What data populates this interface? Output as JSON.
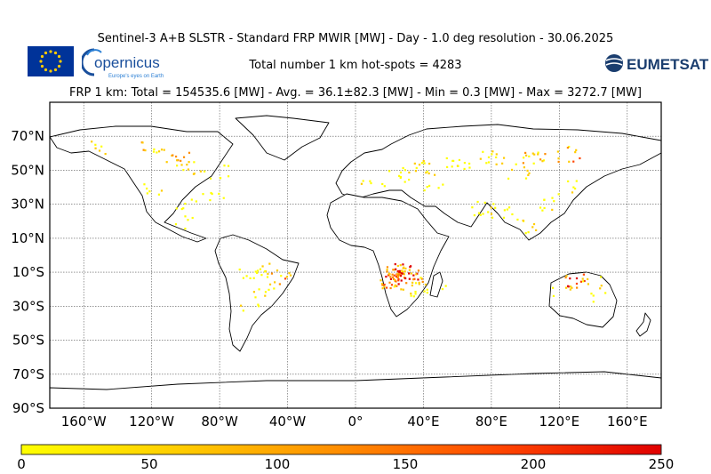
{
  "header": {
    "title": "Sentinel-3 A+B SLSTR - Standard FRP MWIR [MW] - Day - 1.0 deg resolution - 30.06.2025",
    "subtitle": "Total number 1 km hot-spots = 4283",
    "stats": "FRP 1 km: Total = 154535.6 [MW] - Avg. = 36.1±82.3 [MW] - Min = 0.3 [MW] - Max = 3272.7 [MW]"
  },
  "logos": {
    "copernicus_text": "opernicus",
    "copernicus_tagline": "Europe's eyes on Earth",
    "eumetsat_text": "EUMETSAT"
  },
  "map": {
    "lat_ticks": [
      "70°N",
      "50°N",
      "30°N",
      "10°N",
      "10°S",
      "30°S",
      "50°S",
      "70°S",
      "90°S"
    ],
    "lon_ticks": [
      "160°W",
      "120°W",
      "80°W",
      "40°W",
      "0°",
      "40°E",
      "80°E",
      "120°E",
      "160°E"
    ],
    "lat_values": [
      70,
      50,
      30,
      10,
      -10,
      -30,
      -50,
      -70,
      -90
    ],
    "lon_values": [
      -160,
      -120,
      -80,
      -40,
      0,
      40,
      80,
      120,
      160
    ],
    "extent": {
      "lon": [
        -180,
        180
      ],
      "lat": [
        -90,
        90
      ]
    },
    "grid": true
  },
  "colorbar": {
    "ticks": [
      "0",
      "50",
      "100",
      "150",
      "200",
      "250"
    ],
    "min": 0,
    "max": 250,
    "colors": [
      "#ffff00",
      "#ffcc00",
      "#ff8c00",
      "#ff4500",
      "#e00000"
    ]
  },
  "fire_clusters": [
    {
      "lon": -150,
      "lat": 64,
      "n": 6,
      "frp": 60
    },
    {
      "lon": -120,
      "lat": 63,
      "n": 10,
      "frp": 90
    },
    {
      "lon": -105,
      "lat": 57,
      "n": 12,
      "frp": 120
    },
    {
      "lon": -95,
      "lat": 52,
      "n": 8,
      "frp": 50
    },
    {
      "lon": -80,
      "lat": 50,
      "n": 6,
      "frp": 40
    },
    {
      "lon": -118,
      "lat": 40,
      "n": 6,
      "frp": 40
    },
    {
      "lon": -100,
      "lat": 32,
      "n": 6,
      "frp": 30
    },
    {
      "lon": -85,
      "lat": 33,
      "n": 6,
      "frp": 30
    },
    {
      "lon": -100,
      "lat": 20,
      "n": 5,
      "frp": 30
    },
    {
      "lon": -65,
      "lat": -10,
      "n": 8,
      "frp": 40
    },
    {
      "lon": -50,
      "lat": -8,
      "n": 10,
      "frp": 60
    },
    {
      "lon": -45,
      "lat": -14,
      "n": 8,
      "frp": 120
    },
    {
      "lon": -55,
      "lat": -20,
      "n": 6,
      "frp": 50
    },
    {
      "lon": -63,
      "lat": -28,
      "n": 5,
      "frp": 40
    },
    {
      "lon": 25,
      "lat": -9,
      "n": 40,
      "frp": 180
    },
    {
      "lon": 30,
      "lat": -12,
      "n": 25,
      "frp": 220
    },
    {
      "lon": 20,
      "lat": -15,
      "n": 18,
      "frp": 150
    },
    {
      "lon": 35,
      "lat": -17,
      "n": 10,
      "frp": 100
    },
    {
      "lon": 28,
      "lat": -20,
      "n": 8,
      "frp": 60
    },
    {
      "lon": 47,
      "lat": -18,
      "n": 5,
      "frp": 40
    },
    {
      "lon": 10,
      "lat": 45,
      "n": 6,
      "frp": 40
    },
    {
      "lon": 25,
      "lat": 48,
      "n": 10,
      "frp": 40
    },
    {
      "lon": 40,
      "lat": 52,
      "n": 12,
      "frp": 60
    },
    {
      "lon": 60,
      "lat": 55,
      "n": 12,
      "frp": 50
    },
    {
      "lon": 80,
      "lat": 58,
      "n": 12,
      "frp": 60
    },
    {
      "lon": 105,
      "lat": 57,
      "n": 14,
      "frp": 80
    },
    {
      "lon": 125,
      "lat": 60,
      "n": 10,
      "frp": 120
    },
    {
      "lon": 95,
      "lat": 50,
      "n": 8,
      "frp": 50
    },
    {
      "lon": 45,
      "lat": 38,
      "n": 5,
      "frp": 40
    },
    {
      "lon": 75,
      "lat": 28,
      "n": 10,
      "frp": 40
    },
    {
      "lon": 85,
      "lat": 25,
      "n": 8,
      "frp": 40
    },
    {
      "lon": 100,
      "lat": 18,
      "n": 8,
      "frp": 60
    },
    {
      "lon": 115,
      "lat": 30,
      "n": 8,
      "frp": 40
    },
    {
      "lon": 125,
      "lat": 40,
      "n": 6,
      "frp": 40
    },
    {
      "lon": 130,
      "lat": -15,
      "n": 12,
      "frp": 180
    },
    {
      "lon": 140,
      "lat": -16,
      "n": 6,
      "frp": 90
    },
    {
      "lon": 120,
      "lat": -20,
      "n": 6,
      "frp": 60
    },
    {
      "lon": 145,
      "lat": -25,
      "n": 4,
      "frp": 40
    }
  ]
}
